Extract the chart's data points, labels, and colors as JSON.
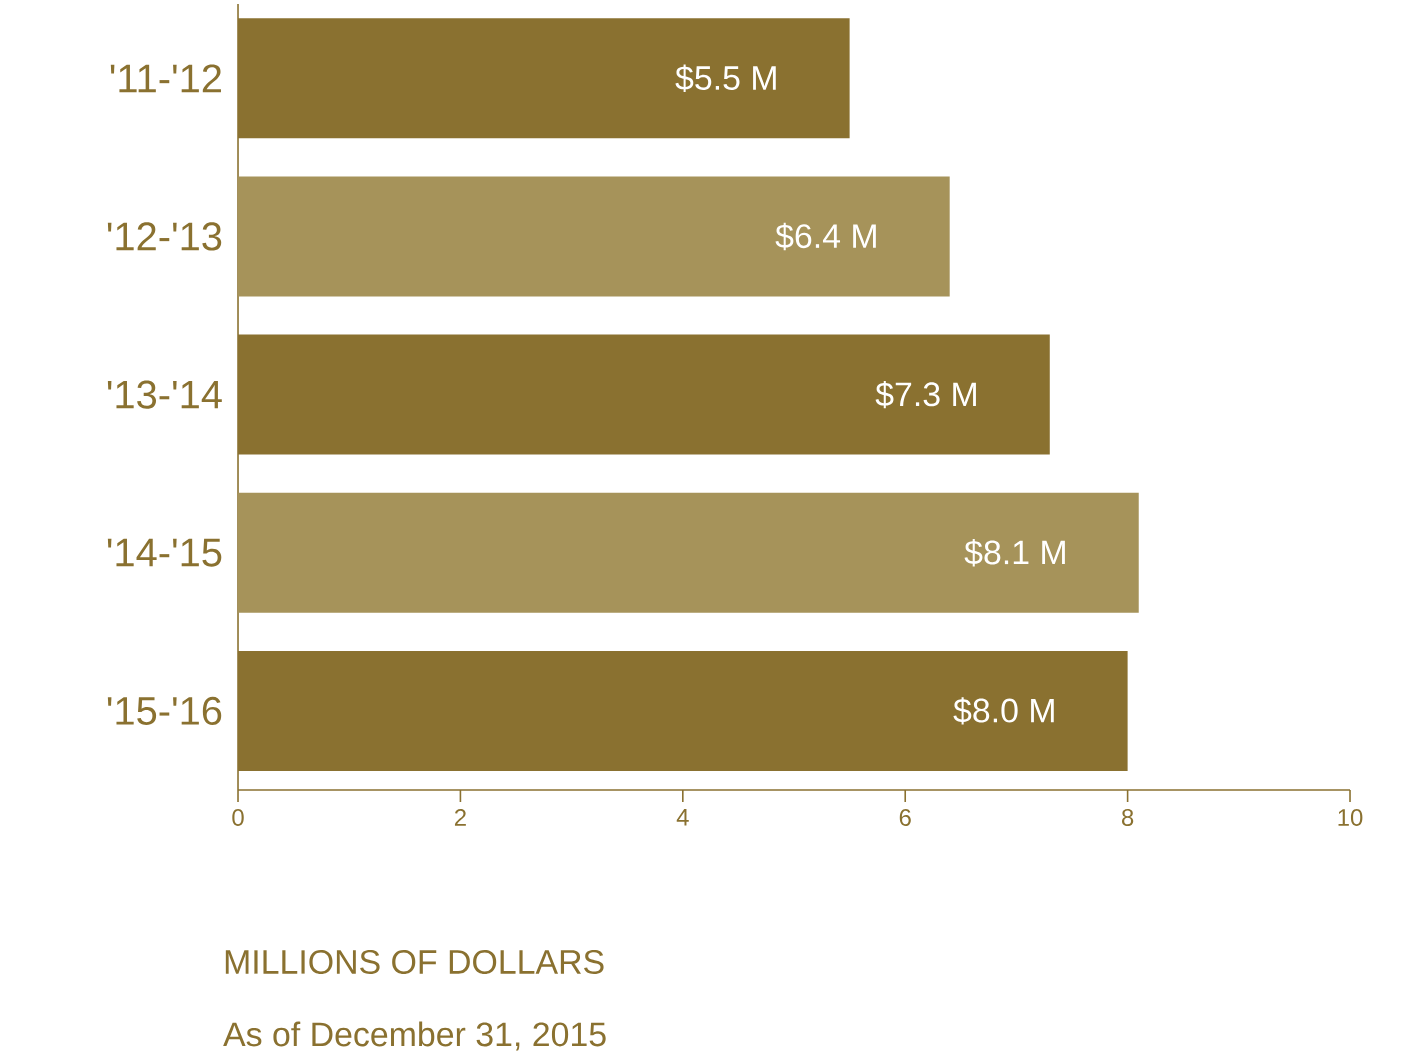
{
  "chart_data": {
    "type": "bar",
    "orientation": "horizontal",
    "categories": [
      "'11-'12",
      "'12-'13",
      "'13-'14",
      "'14-'15",
      "'15-'16"
    ],
    "values": [
      5.5,
      6.4,
      7.3,
      8.1,
      8.0
    ],
    "value_labels": [
      "$5.5 M",
      "$6.4 M",
      "$7.3 M",
      "$8.1 M",
      "$8.0 M"
    ],
    "colors": [
      "#8a7130",
      "#a6935a",
      "#8a7130",
      "#a6935a",
      "#8a7130"
    ],
    "xlim": [
      0,
      10
    ],
    "xticks": [
      0,
      2,
      4,
      6,
      8,
      10
    ],
    "xlabel": "MILLIONS OF DOLLARS",
    "annotations": [
      "As of December 31, 2015"
    ]
  }
}
